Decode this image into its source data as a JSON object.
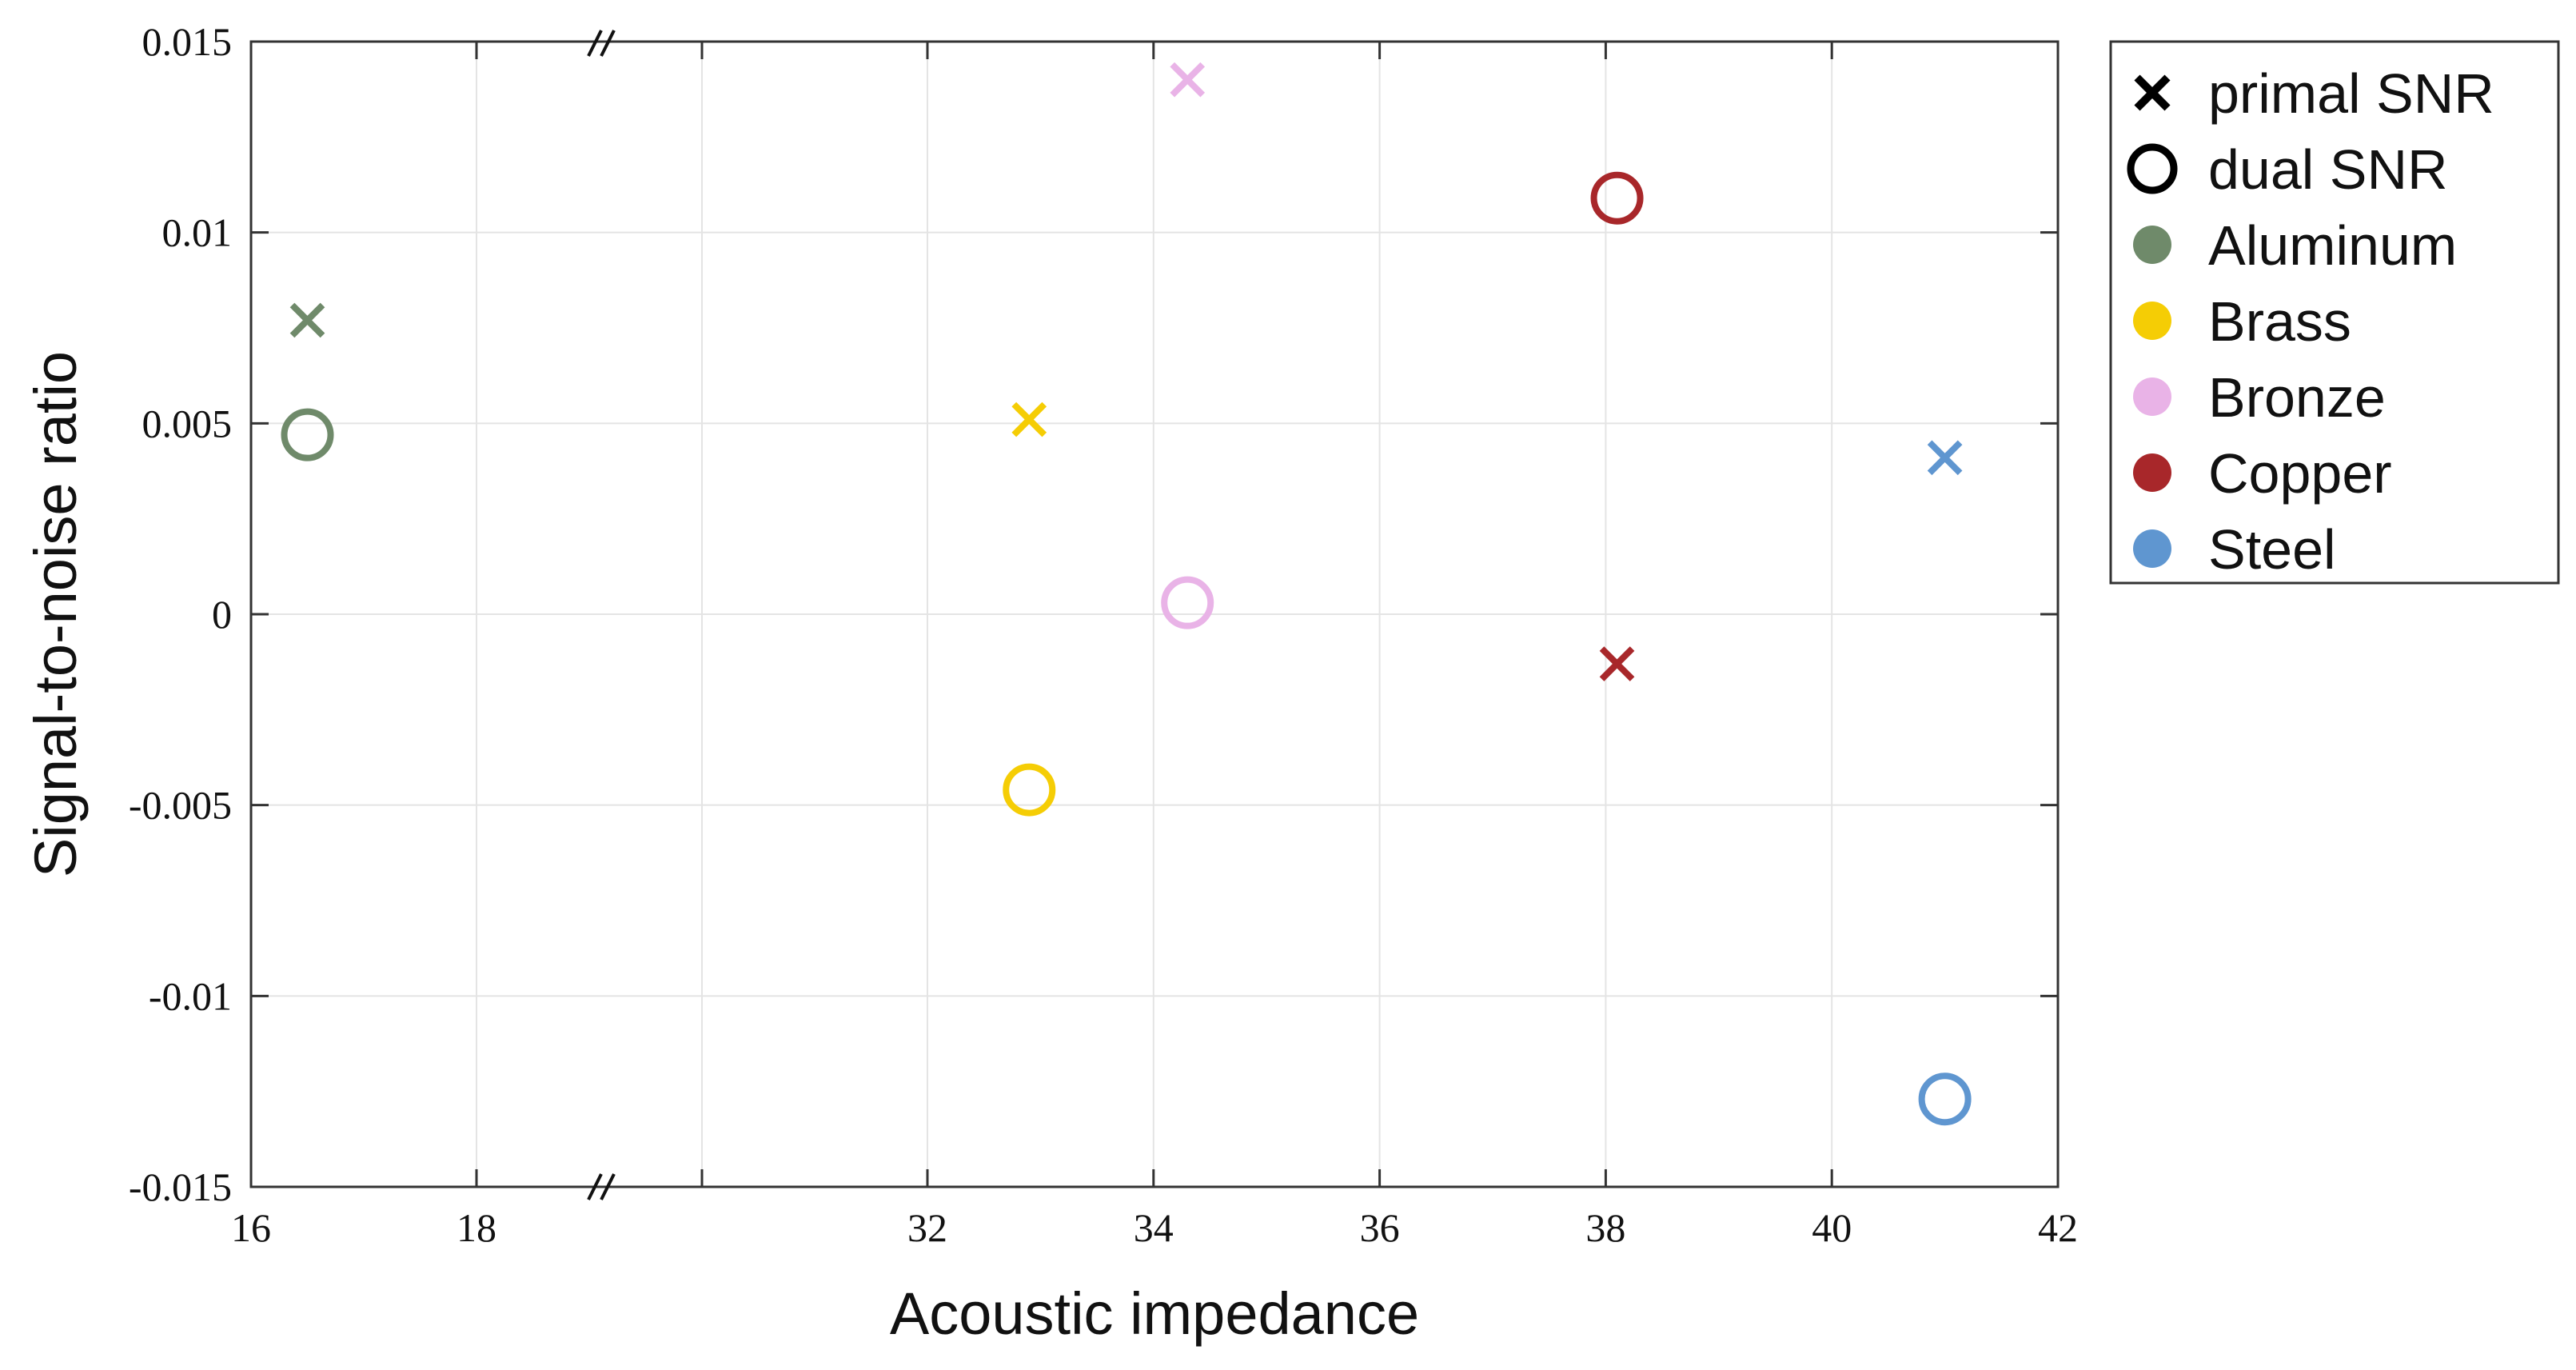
{
  "chart_data": {
    "type": "scatter",
    "xlabel": "Acoustic impedance",
    "ylabel": "Signal-to-noise ratio",
    "x_axis_break": {
      "between": [
        18,
        32
      ],
      "mark": "//"
    },
    "xlim": [
      16,
      42
    ],
    "ylim": [
      -0.015,
      0.015
    ],
    "x_ticks": [
      16,
      18,
      32,
      34,
      36,
      38,
      40,
      42
    ],
    "x_tick_labels": [
      "16",
      "18",
      "32",
      "34",
      "36",
      "38",
      "40",
      "42"
    ],
    "y_ticks": [
      -0.015,
      -0.01,
      -0.005,
      0,
      0.005,
      0.01,
      0.015
    ],
    "y_tick_labels": [
      "-0.015",
      "-0.01",
      "-0.005",
      "0",
      "0.005",
      "0.01",
      "0.015"
    ],
    "grid": true,
    "legend_position": "outside-right-top",
    "marker_legend": [
      {
        "label": "primal SNR",
        "marker": "x"
      },
      {
        "label": "dual SNR",
        "marker": "o"
      }
    ],
    "series": [
      {
        "name": "Aluminum",
        "color": "#6f8a6a",
        "primal": {
          "x": 16.5,
          "y": 0.0077
        },
        "dual": {
          "x": 16.5,
          "y": 0.0047
        }
      },
      {
        "name": "Brass",
        "color": "#f5cd05",
        "primal": {
          "x": 32.9,
          "y": 0.0051
        },
        "dual": {
          "x": 32.9,
          "y": -0.0046
        }
      },
      {
        "name": "Bronze",
        "color": "#e9b3e7",
        "primal": {
          "x": 34.3,
          "y": 0.014
        },
        "dual": {
          "x": 34.3,
          "y": 0.0003
        }
      },
      {
        "name": "Copper",
        "color": "#a8272a",
        "primal": {
          "x": 38.1,
          "y": -0.0013
        },
        "dual": {
          "x": 38.1,
          "y": 0.0109
        }
      },
      {
        "name": "Steel",
        "color": "#5f96d0",
        "primal": {
          "x": 41.0,
          "y": 0.0041
        },
        "dual": {
          "x": 41.0,
          "y": -0.0127
        }
      }
    ]
  }
}
